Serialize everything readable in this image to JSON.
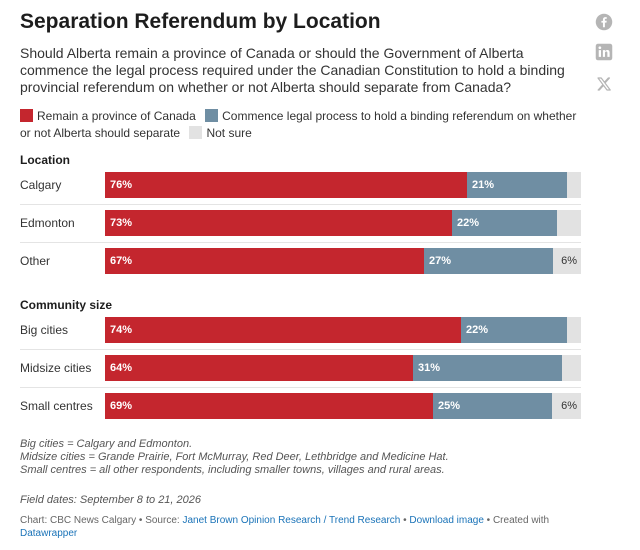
{
  "header": {
    "title": "Separation Referendum by Location",
    "subtitle": "Should Alberta remain a province of Canada or should the Government of Alberta commence the legal process required under the Canadian Constitution to hold a binding provincial referendum on whether or not Alberta should separate from Canada?"
  },
  "social": {
    "icons": [
      "facebook-icon",
      "linkedin-icon",
      "x-icon"
    ]
  },
  "colors": {
    "remain": "#c4262e",
    "commence": "#6f8ea3",
    "not_sure": "#e2e2e2"
  },
  "legend": [
    {
      "label": "Remain a province of Canada",
      "color": "#c4262e"
    },
    {
      "label": "Commence legal process to hold a binding referendum on whether or not Alberta should separate",
      "color": "#6f8ea3"
    },
    {
      "label": "Not sure",
      "color": "#e2e2e2"
    }
  ],
  "chart_data": {
    "type": "bar",
    "orientation": "horizontal",
    "stacked": true,
    "title": "Separation Referendum by Location",
    "series_names": [
      "Remain a province of Canada",
      "Commence legal process to hold a binding referendum on whether or not Alberta should separate",
      "Not sure"
    ],
    "groups": [
      {
        "label": "Location",
        "rows": [
          {
            "category": "Calgary",
            "values": [
              76,
              21,
              3
            ],
            "labels": [
              "76%",
              "21%",
              ""
            ]
          },
          {
            "category": "Edmonton",
            "values": [
              73,
              22,
              5
            ],
            "labels": [
              "73%",
              "22%",
              ""
            ]
          },
          {
            "category": "Other",
            "values": [
              67,
              27,
              6
            ],
            "labels": [
              "67%",
              "27%",
              "6%"
            ]
          }
        ]
      },
      {
        "label": "Community size",
        "rows": [
          {
            "category": "Big cities",
            "values": [
              74,
              22,
              3
            ],
            "labels": [
              "74%",
              "22%",
              ""
            ]
          },
          {
            "category": "Midsize cities",
            "values": [
              64,
              31,
              4
            ],
            "labels": [
              "64%",
              "31%",
              ""
            ]
          },
          {
            "category": "Small centres",
            "values": [
              69,
              25,
              6
            ],
            "labels": [
              "69%",
              "25%",
              "6%"
            ]
          }
        ]
      }
    ],
    "xlim": [
      0,
      100
    ]
  },
  "notes": [
    "Big cities = Calgary and Edmonton.",
    "Midsize cities = Grande Prairie, Fort McMurray, Red Deer, Lethbridge and Medicine Hat.",
    "Small centres = all other respondents, including smaller towns, villages and rural areas."
  ],
  "field_dates": "Field dates: September 8 to 21, 2026",
  "footer": {
    "chart_prefix": "Chart: CBC News Calgary • Source: ",
    "source_link": "Janet Brown Opinion Research / Trend Research",
    "sep": " • ",
    "download_link": "Download image",
    "created_with": " • Created with ",
    "datawrapper_link": "Datawrapper"
  }
}
